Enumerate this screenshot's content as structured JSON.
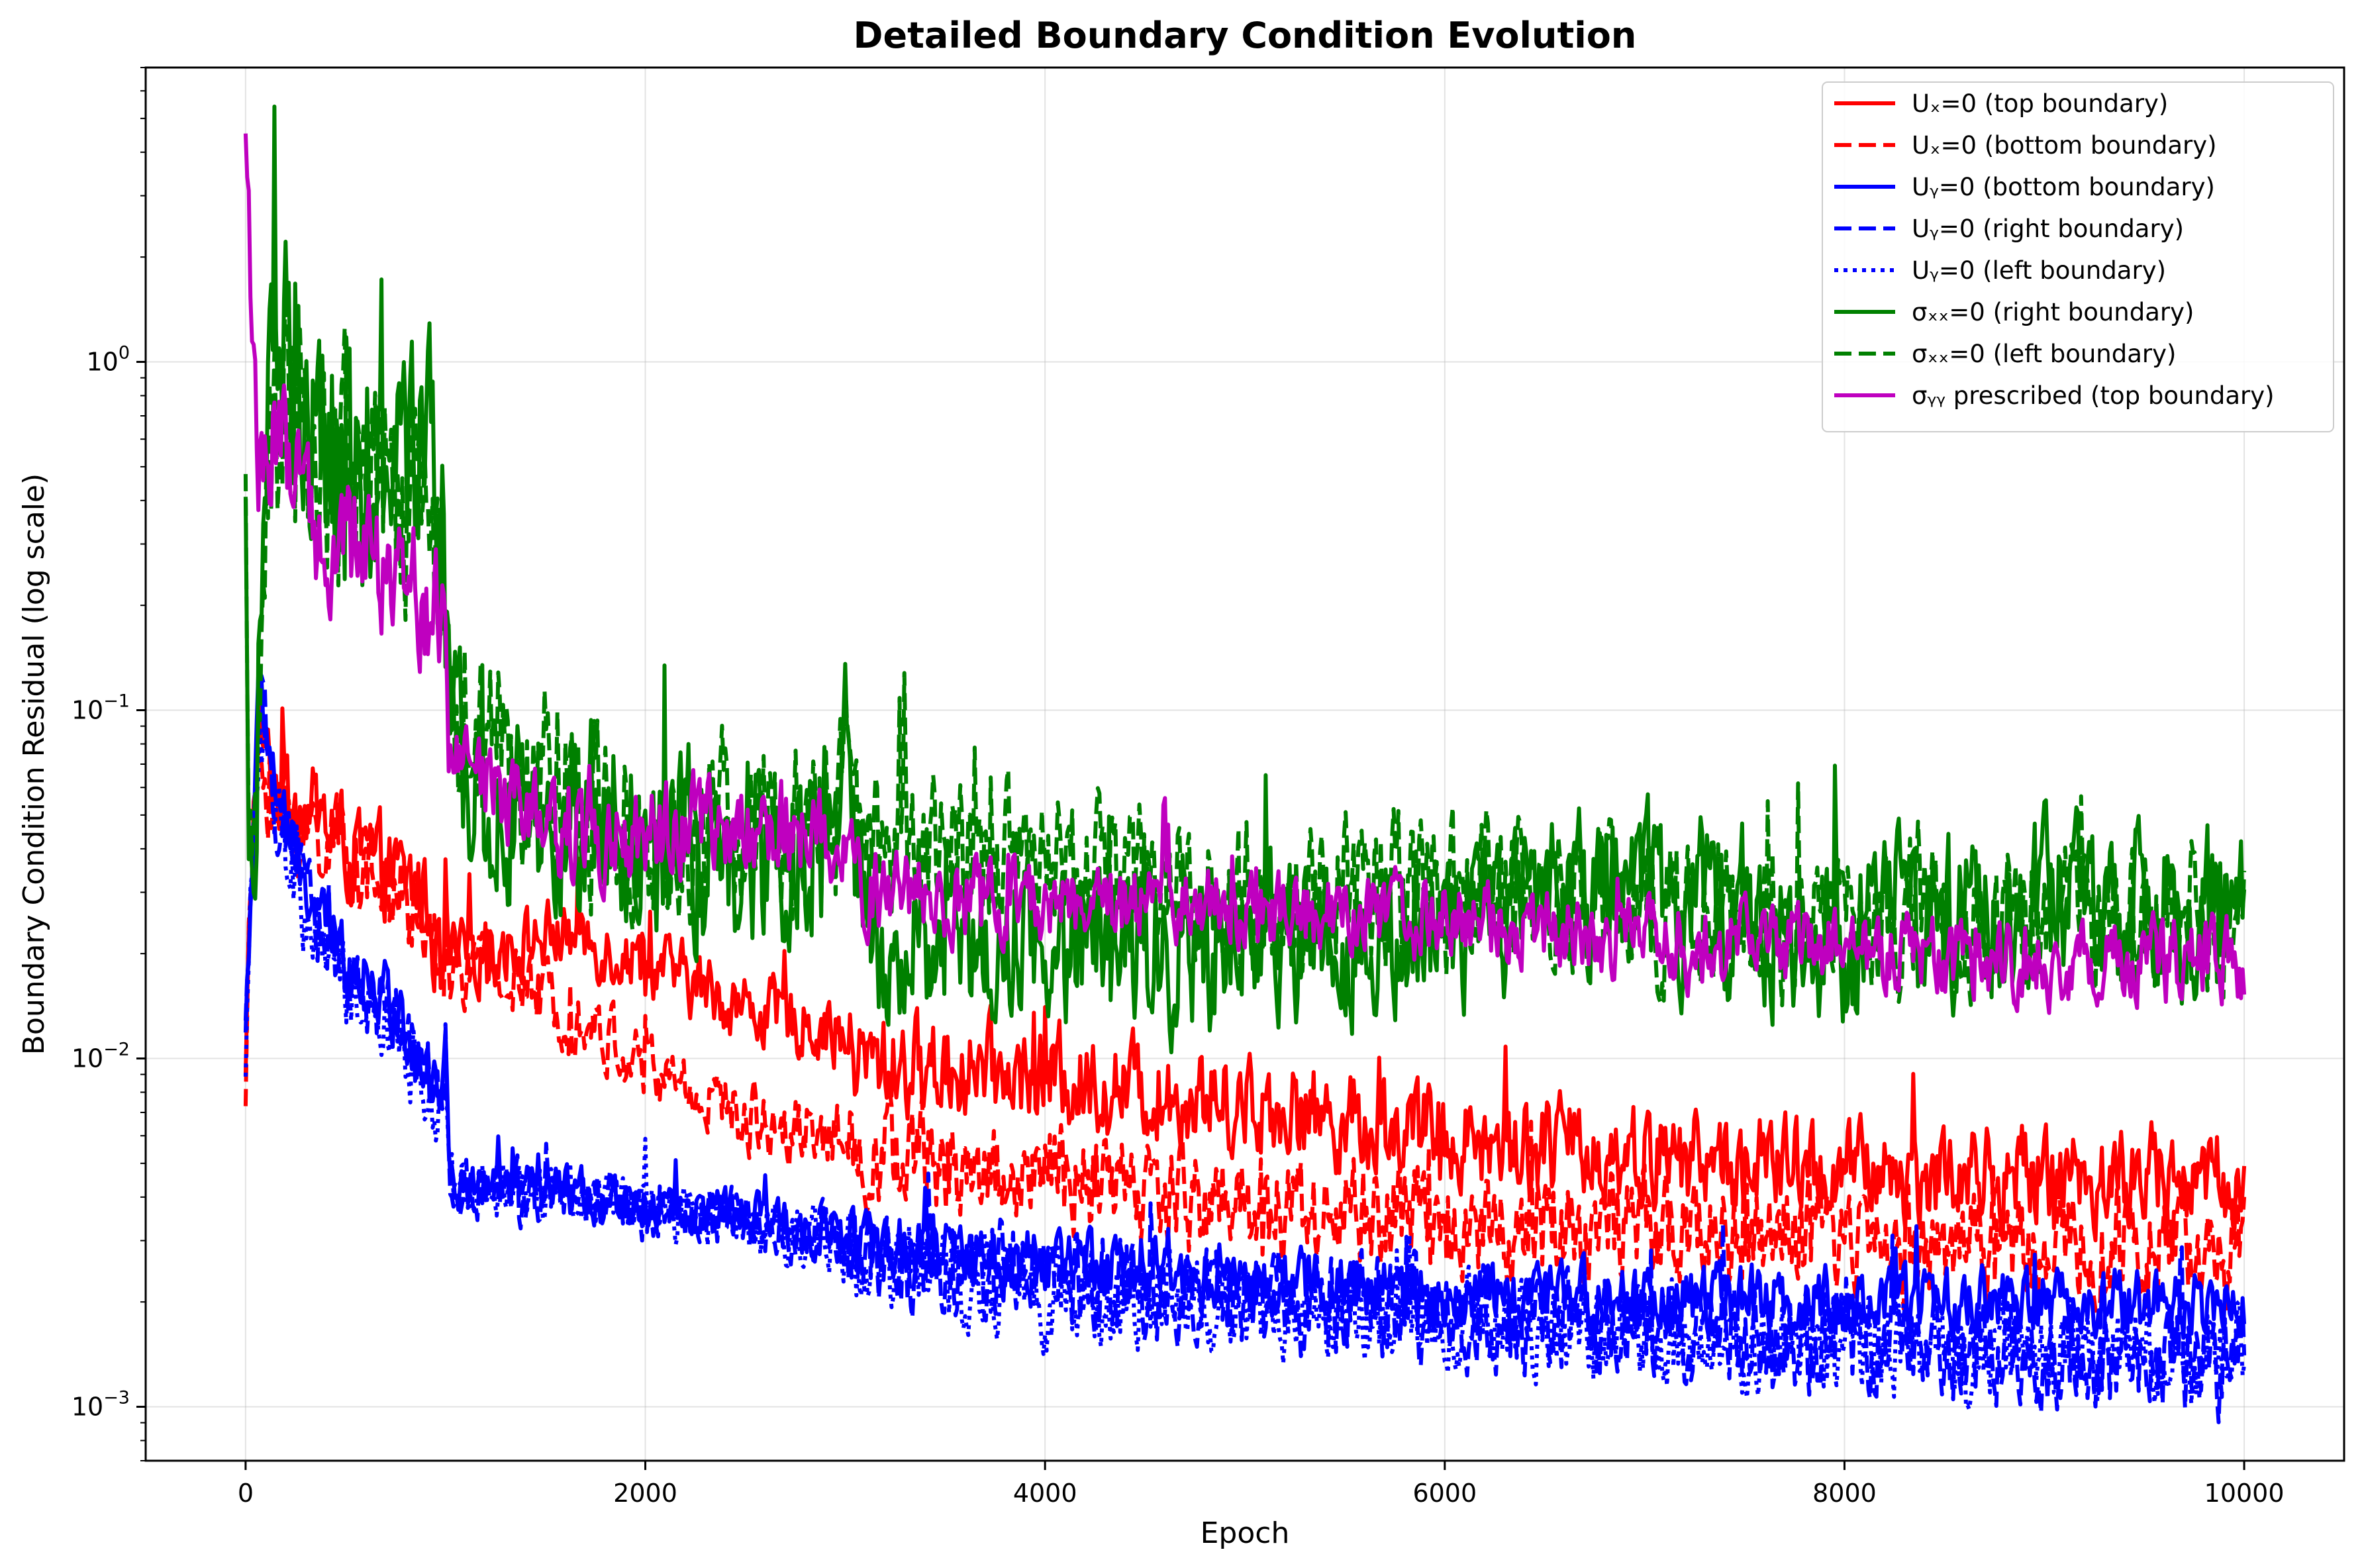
{
  "chart_data": {
    "type": "line",
    "title": "Detailed Boundary Condition Evolution",
    "xlabel": "Epoch",
    "ylabel": "Boundary Condition Residual (log scale)",
    "x_range": [
      -500,
      10500
    ],
    "y_range": [
      0.0007,
      7
    ],
    "y_scale": "log",
    "grid": true,
    "legend_position": "upper right",
    "x_ticks": [
      0,
      2000,
      4000,
      6000,
      8000,
      10000
    ],
    "x_tick_labels": [
      "0",
      "2000",
      "4000",
      "6000",
      "8000",
      "10000"
    ],
    "y_ticks": [
      0.001,
      0.01,
      0.1,
      1
    ],
    "y_tick_labels": [
      {
        "base": "10",
        "exp": "−3"
      },
      {
        "base": "10",
        "exp": "−2"
      },
      {
        "base": "10",
        "exp": "−1"
      },
      {
        "base": "10",
        "exp": "0"
      }
    ],
    "series": [
      {
        "name": "Uₓ=0 (top boundary)",
        "color": "#ff0000",
        "dash": "solid",
        "noise": 0.07,
        "noise_late": 0.12,
        "points": [
          [
            0,
            0.008
          ],
          [
            25,
            0.03
          ],
          [
            60,
            0.09
          ],
          [
            150,
            0.06
          ],
          [
            300,
            0.055
          ],
          [
            500,
            0.04
          ],
          [
            700,
            0.035
          ],
          [
            900,
            0.03
          ],
          [
            990,
            0.015
          ],
          [
            1000,
            0.03
          ],
          [
            1020,
            0.019
          ],
          [
            1300,
            0.021
          ],
          [
            1600,
            0.023
          ],
          [
            2000,
            0.019
          ],
          [
            2500,
            0.014
          ],
          [
            2950,
            0.012
          ],
          [
            3000,
            0.011
          ],
          [
            3050,
            0.0098
          ],
          [
            4000,
            0.0088
          ],
          [
            5000,
            0.0075
          ],
          [
            6000,
            0.006
          ],
          [
            7000,
            0.0053
          ],
          [
            8000,
            0.0047
          ],
          [
            9000,
            0.0046
          ],
          [
            10000,
            0.0045
          ]
        ]
      },
      {
        "name": "Uₓ=0 (bottom boundary)",
        "color": "#ff0000",
        "dash": "dashed",
        "noise": 0.07,
        "noise_late": 0.13,
        "points": [
          [
            0,
            0.009
          ],
          [
            25,
            0.03
          ],
          [
            60,
            0.075
          ],
          [
            150,
            0.05
          ],
          [
            300,
            0.045
          ],
          [
            500,
            0.04
          ],
          [
            700,
            0.03
          ],
          [
            900,
            0.025
          ],
          [
            990,
            0.014
          ],
          [
            1000,
            0.026
          ],
          [
            1020,
            0.018
          ],
          [
            1300,
            0.017
          ],
          [
            1600,
            0.014
          ],
          [
            2000,
            0.0095
          ],
          [
            2500,
            0.0068
          ],
          [
            2950,
            0.0062
          ],
          [
            3000,
            0.0058
          ],
          [
            3050,
            0.0055
          ],
          [
            4000,
            0.0045
          ],
          [
            5000,
            0.0038
          ],
          [
            6000,
            0.0034
          ],
          [
            7000,
            0.0032
          ],
          [
            8000,
            0.003
          ],
          [
            9000,
            0.0029
          ],
          [
            10000,
            0.0029
          ]
        ]
      },
      {
        "name": "Uᵧ=0 (bottom boundary)",
        "color": "#0000ff",
        "dash": "solid",
        "noise": 0.05,
        "noise_late": 0.08,
        "points": [
          [
            0,
            0.012
          ],
          [
            25,
            0.03
          ],
          [
            70,
            0.12
          ],
          [
            150,
            0.06
          ],
          [
            300,
            0.03
          ],
          [
            500,
            0.02
          ],
          [
            700,
            0.015
          ],
          [
            900,
            0.01
          ],
          [
            990,
            0.008
          ],
          [
            1000,
            0.012
          ],
          [
            1020,
            0.0042
          ],
          [
            1300,
            0.0042
          ],
          [
            1600,
            0.0041
          ],
          [
            2000,
            0.0038
          ],
          [
            2500,
            0.0035
          ],
          [
            2950,
            0.0032
          ],
          [
            3000,
            0.0031
          ],
          [
            3100,
            0.0029
          ],
          [
            4000,
            0.0026
          ],
          [
            5000,
            0.0023
          ],
          [
            6000,
            0.0021
          ],
          [
            7000,
            0.00205
          ],
          [
            8000,
            0.002
          ],
          [
            9000,
            0.002
          ],
          [
            10000,
            0.00195
          ]
        ]
      },
      {
        "name": "Uᵧ=0 (right boundary)",
        "color": "#0000ff",
        "dash": "dashed",
        "noise": 0.06,
        "noise_late": 0.12,
        "points": [
          [
            0,
            0.011
          ],
          [
            25,
            0.03
          ],
          [
            70,
            0.1
          ],
          [
            150,
            0.055
          ],
          [
            300,
            0.028
          ],
          [
            500,
            0.018
          ],
          [
            700,
            0.013
          ],
          [
            900,
            0.009
          ],
          [
            990,
            0.007
          ],
          [
            1000,
            0.011
          ],
          [
            1020,
            0.0041
          ],
          [
            1300,
            0.0041
          ],
          [
            1600,
            0.004
          ],
          [
            2000,
            0.0037
          ],
          [
            2500,
            0.0034
          ],
          [
            2950,
            0.0031
          ],
          [
            3000,
            0.0029
          ],
          [
            3100,
            0.0027
          ],
          [
            4000,
            0.0023
          ],
          [
            5000,
            0.002
          ],
          [
            6000,
            0.0018
          ],
          [
            7000,
            0.00165
          ],
          [
            8000,
            0.0015
          ],
          [
            9000,
            0.0014
          ],
          [
            10000,
            0.0013
          ]
        ]
      },
      {
        "name": "Uᵧ=0 (left boundary)",
        "color": "#0000ff",
        "dash": "dotted",
        "noise": 0.06,
        "noise_late": 0.11,
        "points": [
          [
            0,
            0.01
          ],
          [
            25,
            0.03
          ],
          [
            70,
            0.09
          ],
          [
            150,
            0.05
          ],
          [
            300,
            0.025
          ],
          [
            500,
            0.016
          ],
          [
            700,
            0.012
          ],
          [
            900,
            0.0085
          ],
          [
            990,
            0.0065
          ],
          [
            1000,
            0.01
          ],
          [
            1020,
            0.0042
          ],
          [
            1300,
            0.0043
          ],
          [
            1600,
            0.0042
          ],
          [
            2000,
            0.0037
          ],
          [
            2500,
            0.0033
          ],
          [
            2950,
            0.003
          ],
          [
            3000,
            0.0028
          ],
          [
            3100,
            0.0026
          ],
          [
            4000,
            0.0021
          ],
          [
            5000,
            0.0019
          ],
          [
            6000,
            0.0017
          ],
          [
            7000,
            0.0016
          ],
          [
            8000,
            0.0015
          ],
          [
            9000,
            0.00145
          ],
          [
            10000,
            0.0014
          ]
        ]
      },
      {
        "name": "σₓₓ=0 (right boundary)",
        "color": "#008000",
        "dash": "solid",
        "noise": 0.2,
        "noise_late": 0.2,
        "points": [
          [
            0,
            0.35
          ],
          [
            20,
            0.02
          ],
          [
            50,
            0.08
          ],
          [
            100,
            0.6
          ],
          [
            200,
            0.9
          ],
          [
            300,
            0.6
          ],
          [
            500,
            0.5
          ],
          [
            700,
            0.5
          ],
          [
            900,
            0.5
          ],
          [
            990,
            0.35
          ],
          [
            1000,
            0.15
          ],
          [
            1020,
            0.08
          ],
          [
            1300,
            0.045
          ],
          [
            1600,
            0.04
          ],
          [
            1800,
            0.05
          ],
          [
            2000,
            0.04
          ],
          [
            2500,
            0.04
          ],
          [
            2990,
            0.045
          ],
          [
            3000,
            0.07
          ],
          [
            3050,
            0.03
          ],
          [
            3200,
            0.02
          ],
          [
            4000,
            0.022
          ],
          [
            5000,
            0.021
          ],
          [
            6000,
            0.024
          ],
          [
            7000,
            0.03
          ],
          [
            8000,
            0.022
          ],
          [
            9000,
            0.028
          ],
          [
            10000,
            0.025
          ]
        ]
      },
      {
        "name": "σₓₓ=0 (left boundary)",
        "color": "#008000",
        "dash": "dashed",
        "noise": 0.18,
        "noise_late": 0.18,
        "points": [
          [
            0,
            0.25
          ],
          [
            20,
            0.02
          ],
          [
            50,
            0.07
          ],
          [
            100,
            0.5
          ],
          [
            200,
            0.8
          ],
          [
            300,
            0.55
          ],
          [
            500,
            0.5
          ],
          [
            700,
            0.45
          ],
          [
            900,
            0.45
          ],
          [
            990,
            0.3
          ],
          [
            1000,
            0.15
          ],
          [
            1020,
            0.085
          ],
          [
            1300,
            0.075
          ],
          [
            1600,
            0.065
          ],
          [
            1800,
            0.05
          ],
          [
            2000,
            0.045
          ],
          [
            2500,
            0.045
          ],
          [
            2990,
            0.05
          ],
          [
            3000,
            0.07
          ],
          [
            3050,
            0.045
          ],
          [
            3200,
            0.04
          ],
          [
            4000,
            0.035
          ],
          [
            5000,
            0.03
          ],
          [
            6000,
            0.03
          ],
          [
            7000,
            0.028
          ],
          [
            8000,
            0.025
          ],
          [
            9000,
            0.025
          ],
          [
            10000,
            0.025
          ]
        ]
      },
      {
        "name": "σᵧᵧ prescribed (top boundary)",
        "color": "#bf00bf",
        "dash": "solid",
        "noise": 0.1,
        "noise_late": 0.1,
        "points": [
          [
            0,
            5
          ],
          [
            30,
            1.5
          ],
          [
            60,
            0.5
          ],
          [
            150,
            0.6
          ],
          [
            300,
            0.35
          ],
          [
            500,
            0.3
          ],
          [
            700,
            0.25
          ],
          [
            900,
            0.2
          ],
          [
            990,
            0.17
          ],
          [
            1000,
            0.15
          ],
          [
            1020,
            0.072
          ],
          [
            1300,
            0.06
          ],
          [
            1600,
            0.045
          ],
          [
            2000,
            0.045
          ],
          [
            2500,
            0.045
          ],
          [
            2990,
            0.045
          ],
          [
            3000,
            0.045
          ],
          [
            3100,
            0.03
          ],
          [
            4000,
            0.028
          ],
          [
            5000,
            0.027
          ],
          [
            6000,
            0.025
          ],
          [
            7000,
            0.022
          ],
          [
            8000,
            0.02
          ],
          [
            9000,
            0.019
          ],
          [
            10000,
            0.019
          ]
        ]
      }
    ]
  }
}
